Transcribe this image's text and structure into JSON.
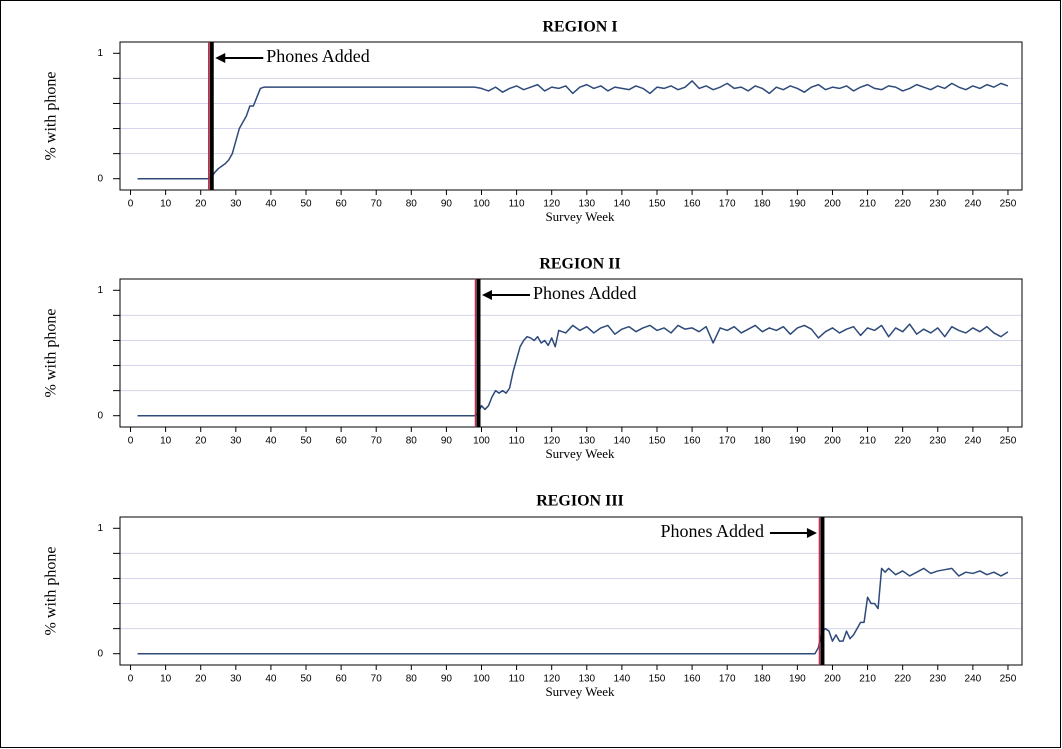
{
  "chart_data": [
    {
      "type": "line",
      "title": "REGION I",
      "x_label": "Survey Week",
      "y_label": "% with phone",
      "xlim": [
        -3,
        254
      ],
      "ylim": [
        -0.09,
        1.09
      ],
      "xticks": [
        0,
        10,
        20,
        30,
        40,
        50,
        60,
        70,
        80,
        90,
        100,
        110,
        120,
        130,
        140,
        150,
        160,
        170,
        180,
        190,
        200,
        210,
        220,
        230,
        240,
        250
      ],
      "yticks": [
        0,
        1
      ],
      "yminor": [
        0.2,
        0.4,
        0.6,
        0.8
      ],
      "grid": true,
      "annotation": {
        "text": "Phones Added",
        "x": 23,
        "side": "right"
      },
      "series": [
        {
          "color": "#2e4a7a",
          "x": [
            2,
            22,
            23,
            24,
            25,
            26,
            27,
            28,
            29,
            30,
            31,
            32,
            33,
            34,
            35,
            36,
            37,
            38,
            98,
            100,
            102,
            104,
            106,
            108,
            110,
            112,
            114,
            116,
            118,
            120,
            122,
            124,
            126,
            128,
            130,
            132,
            134,
            136,
            138,
            140,
            142,
            144,
            146,
            148,
            150,
            152,
            154,
            156,
            158,
            160,
            162,
            164,
            166,
            168,
            170,
            172,
            174,
            176,
            178,
            180,
            182,
            184,
            186,
            188,
            190,
            192,
            194,
            196,
            198,
            200,
            202,
            204,
            206,
            208,
            210,
            212,
            214,
            216,
            218,
            220,
            222,
            224,
            226,
            228,
            230,
            232,
            234,
            236,
            238,
            240,
            242,
            244,
            246,
            248,
            250
          ],
          "values": [
            0,
            0,
            0.01,
            0.05,
            0.08,
            0.1,
            0.12,
            0.15,
            0.2,
            0.3,
            0.4,
            0.45,
            0.5,
            0.58,
            0.58,
            0.65,
            0.72,
            0.73,
            0.73,
            0.72,
            0.7,
            0.73,
            0.69,
            0.72,
            0.74,
            0.71,
            0.73,
            0.75,
            0.7,
            0.73,
            0.72,
            0.74,
            0.68,
            0.73,
            0.75,
            0.72,
            0.74,
            0.7,
            0.73,
            0.72,
            0.71,
            0.74,
            0.72,
            0.68,
            0.73,
            0.72,
            0.74,
            0.71,
            0.73,
            0.78,
            0.72,
            0.74,
            0.71,
            0.73,
            0.76,
            0.72,
            0.73,
            0.7,
            0.74,
            0.72,
            0.68,
            0.73,
            0.71,
            0.74,
            0.72,
            0.69,
            0.73,
            0.75,
            0.71,
            0.73,
            0.72,
            0.74,
            0.7,
            0.73,
            0.75,
            0.72,
            0.71,
            0.74,
            0.73,
            0.7,
            0.72,
            0.75,
            0.73,
            0.71,
            0.74,
            0.72,
            0.76,
            0.73,
            0.71,
            0.74,
            0.72,
            0.75,
            0.73,
            0.76,
            0.74
          ]
        }
      ]
    },
    {
      "type": "line",
      "title": "REGION II",
      "x_label": "Survey Week",
      "y_label": "% with phone",
      "xlim": [
        -3,
        254
      ],
      "ylim": [
        -0.09,
        1.09
      ],
      "xticks": [
        0,
        10,
        20,
        30,
        40,
        50,
        60,
        70,
        80,
        90,
        100,
        110,
        120,
        130,
        140,
        150,
        160,
        170,
        180,
        190,
        200,
        210,
        220,
        230,
        240,
        250
      ],
      "yticks": [
        0,
        1
      ],
      "yminor": [
        0.2,
        0.4,
        0.6,
        0.8
      ],
      "grid": true,
      "annotation": {
        "text": "Phones Added",
        "x": 99,
        "side": "right"
      },
      "series": [
        {
          "color": "#2e4a7a",
          "x": [
            2,
            98,
            99,
            100,
            101,
            102,
            103,
            104,
            105,
            106,
            107,
            108,
            109,
            110,
            111,
            112,
            113,
            114,
            115,
            116,
            117,
            118,
            119,
            120,
            121,
            122,
            124,
            126,
            128,
            130,
            132,
            134,
            136,
            138,
            140,
            142,
            144,
            146,
            148,
            150,
            152,
            154,
            156,
            158,
            160,
            162,
            164,
            166,
            168,
            170,
            172,
            174,
            176,
            178,
            180,
            182,
            184,
            186,
            188,
            190,
            192,
            194,
            196,
            198,
            200,
            202,
            204,
            206,
            208,
            210,
            212,
            214,
            216,
            218,
            220,
            222,
            224,
            226,
            228,
            230,
            232,
            234,
            236,
            238,
            240,
            242,
            244,
            246,
            248,
            250
          ],
          "values": [
            0,
            0,
            0.02,
            0.08,
            0.05,
            0.08,
            0.15,
            0.2,
            0.18,
            0.2,
            0.18,
            0.22,
            0.35,
            0.45,
            0.55,
            0.6,
            0.63,
            0.62,
            0.6,
            0.63,
            0.58,
            0.6,
            0.56,
            0.62,
            0.55,
            0.68,
            0.66,
            0.72,
            0.68,
            0.71,
            0.66,
            0.7,
            0.72,
            0.65,
            0.69,
            0.71,
            0.67,
            0.7,
            0.72,
            0.68,
            0.7,
            0.66,
            0.72,
            0.69,
            0.7,
            0.67,
            0.71,
            0.58,
            0.7,
            0.68,
            0.71,
            0.66,
            0.69,
            0.72,
            0.67,
            0.7,
            0.68,
            0.71,
            0.65,
            0.7,
            0.72,
            0.69,
            0.62,
            0.67,
            0.7,
            0.66,
            0.69,
            0.71,
            0.64,
            0.7,
            0.68,
            0.72,
            0.63,
            0.7,
            0.67,
            0.73,
            0.65,
            0.69,
            0.66,
            0.7,
            0.63,
            0.71,
            0.68,
            0.66,
            0.7,
            0.67,
            0.71,
            0.66,
            0.63,
            0.67
          ]
        }
      ]
    },
    {
      "type": "line",
      "title": "REGION III",
      "x_label": "Survey Week",
      "y_label": "% with phone",
      "xlim": [
        -3,
        254
      ],
      "ylim": [
        -0.09,
        1.09
      ],
      "xticks": [
        0,
        10,
        20,
        30,
        40,
        50,
        60,
        70,
        80,
        90,
        100,
        110,
        120,
        130,
        140,
        150,
        160,
        170,
        180,
        190,
        200,
        210,
        220,
        230,
        240,
        250
      ],
      "yticks": [
        0,
        1
      ],
      "yminor": [
        0.2,
        0.4,
        0.6,
        0.8
      ],
      "grid": true,
      "annotation": {
        "text": "Phones Added",
        "x": 197,
        "side": "left"
      },
      "series": [
        {
          "color": "#2e4a7a",
          "x": [
            2,
            195,
            196,
            197,
            198,
            199,
            200,
            201,
            202,
            203,
            204,
            205,
            206,
            207,
            208,
            209,
            210,
            211,
            212,
            213,
            214,
            215,
            216,
            218,
            220,
            222,
            224,
            226,
            228,
            230,
            232,
            234,
            236,
            238,
            240,
            242,
            244,
            246,
            248,
            250
          ],
          "values": [
            0,
            0,
            0.05,
            0.18,
            0.2,
            0.18,
            0.1,
            0.15,
            0.1,
            0.1,
            0.18,
            0.12,
            0.15,
            0.2,
            0.25,
            0.25,
            0.45,
            0.4,
            0.4,
            0.36,
            0.68,
            0.65,
            0.68,
            0.63,
            0.66,
            0.62,
            0.65,
            0.68,
            0.64,
            0.66,
            0.67,
            0.68,
            0.62,
            0.65,
            0.64,
            0.66,
            0.63,
            0.65,
            0.62,
            0.65
          ]
        }
      ]
    }
  ]
}
